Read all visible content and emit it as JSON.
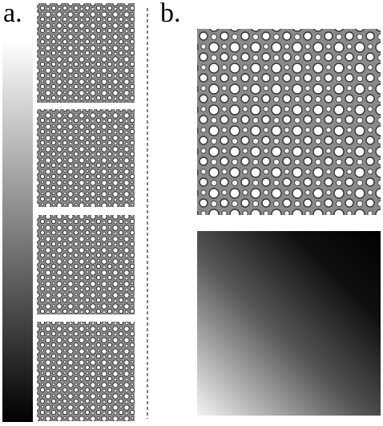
{
  "labels": {
    "a": "a.",
    "b": "b."
  }
}
